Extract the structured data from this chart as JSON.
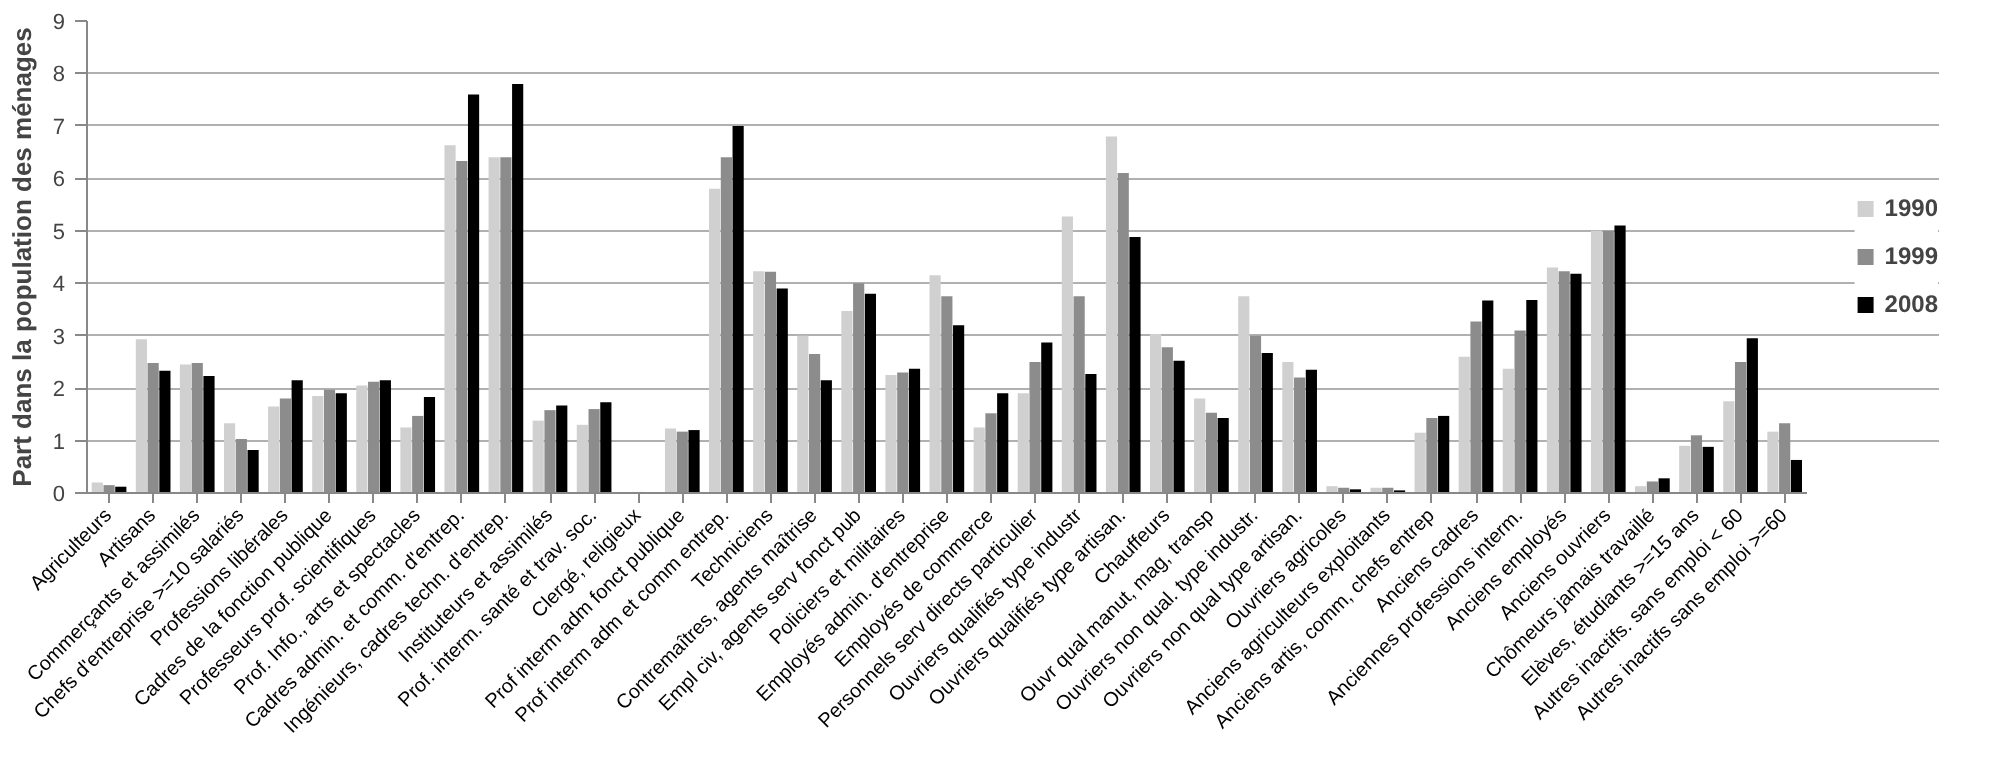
{
  "chart_data": {
    "type": "bar",
    "ylabel": "Part dans la population des ménages",
    "categories": [
      "Agriculteurs",
      "Artisans",
      "Commerçants et assimilés",
      "Chefs d'entreprise >=10 salariés",
      "Professions libérales",
      "Cadres de la fonction publique",
      "Professeurs prof. scientifiques",
      "Prof. Info., arts et spectacles",
      "Cadres admin. et comm. d'entrep.",
      "Ingénieurs, cadres techn. d'entrep.",
      "Instituteurs et assimilés",
      "Prof. interm. santé et trav. soc.",
      "Clergé, religieux",
      "Prof interm adm fonct publique",
      "Prof interm adm et comm entrep.",
      "Techniciens",
      "Contremaîtres, agents maîtrise",
      "Empl civ, agents serv fonct pub",
      "Policiers et militaires",
      "Employés admin. d'entreprise",
      "Employés de commerce",
      "Personnels serv directs particulier",
      "Ouvriers qualifiés type industr",
      "Ouvriers qualifiés type artisan.",
      "Chauffeurs",
      "Ouvr qual manut, mag, transp",
      "Ouvriers non qual. type industr.",
      "Ouvriers non qual type artisan.",
      "Ouvriers agricoles",
      "Anciens agriculteurs exploitants",
      "Anciens artis, comm, chefs entrep",
      "Anciens cadres",
      "Anciennes professions interm.",
      "Anciens employés",
      "Anciens ouvriers",
      "Chômeurs jamais travaillé",
      "Elèves, étudiants >=15 ans",
      "Autres inactifs. sans emploi < 60",
      "Autres inactifs sans emploi >=60"
    ],
    "series": [
      {
        "name": "1990",
        "color": "#d0d0d0",
        "values": [
          0.2,
          2.93,
          2.45,
          1.33,
          1.65,
          1.85,
          2.05,
          1.25,
          6.63,
          6.4,
          1.38,
          1.3,
          null,
          1.23,
          5.8,
          4.23,
          3.0,
          3.47,
          2.25,
          4.15,
          1.25,
          1.9,
          5.27,
          6.8,
          3.03,
          1.8,
          3.75,
          2.5,
          0.13,
          0.1,
          1.15,
          2.6,
          2.37,
          4.3,
          5.0,
          0.13,
          0.9,
          1.75,
          1.17
        ]
      },
      {
        "name": "1999",
        "color": "#8c8c8c",
        "values": [
          0.15,
          2.48,
          2.48,
          1.03,
          1.8,
          1.97,
          2.12,
          1.47,
          6.33,
          6.4,
          1.58,
          1.6,
          0.02,
          1.17,
          6.4,
          4.22,
          2.65,
          4.0,
          2.3,
          3.75,
          1.52,
          2.5,
          3.75,
          6.1,
          2.78,
          1.53,
          3.0,
          2.2,
          0.1,
          0.1,
          1.43,
          3.27,
          3.1,
          4.23,
          5.0,
          0.22,
          1.1,
          2.5,
          1.33
        ]
      },
      {
        "name": "2008",
        "color": "#000000",
        "values": [
          0.12,
          2.33,
          2.23,
          0.82,
          2.15,
          1.9,
          2.15,
          1.83,
          7.6,
          7.8,
          1.67,
          1.73,
          null,
          1.2,
          7.0,
          3.9,
          2.15,
          3.8,
          2.37,
          3.2,
          1.9,
          2.87,
          2.27,
          4.88,
          2.52,
          1.43,
          2.67,
          2.35,
          0.07,
          0.05,
          1.47,
          3.67,
          3.68,
          4.18,
          5.1,
          0.28,
          0.88,
          2.95,
          0.63
        ]
      }
    ],
    "ylim": [
      0,
      9
    ],
    "yticks": [
      0,
      1,
      2,
      3,
      4,
      5,
      6,
      7,
      8,
      9
    ],
    "grid": "y",
    "legend": "right"
  }
}
